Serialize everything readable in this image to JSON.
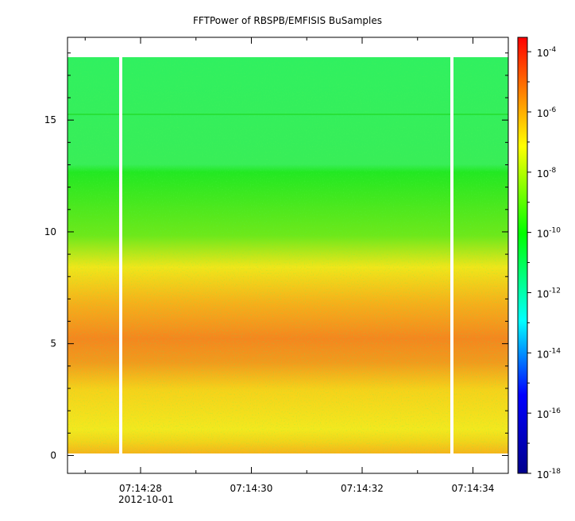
{
  "chart_data": {
    "type": "heatmap",
    "title": "FFTPower of RBSPB/EMFISIS  BuSamples",
    "xlabel": "",
    "ylabel": "",
    "x_date": "2012-10-01",
    "x_ticks": [
      "07:14:28",
      "07:14:30",
      "07:14:32",
      "07:14:34"
    ],
    "y_ticks": [
      "0",
      "5",
      "10",
      "15"
    ],
    "ylim": [
      -0.8,
      18.7
    ],
    "colorbar": {
      "scale": "log",
      "range": [
        1e-18,
        0.0003
      ],
      "tick_mantissa": "10",
      "tick_exponents": [
        "-4",
        "-6",
        "-8",
        "-10",
        "-12",
        "-14",
        "-16",
        "-18"
      ],
      "colors": [
        "#00008b",
        "#0000ff",
        "#00ffff",
        "#00ff00",
        "#ffff00",
        "#ff0000"
      ]
    },
    "data_gaps": [
      "07:14:27.5",
      "07:14:33.6"
    ],
    "bands": [
      {
        "y_range": [
          0,
          0.4
        ],
        "level": "yellow-orange"
      },
      {
        "y_range": [
          0.4,
          3
        ],
        "level": "yellow"
      },
      {
        "y_range": [
          3,
          7
        ],
        "level": "orange (peak near 5)"
      },
      {
        "y_range": [
          7,
          9
        ],
        "level": "yellow"
      },
      {
        "y_range": [
          9,
          12.3
        ],
        "level": "green"
      },
      {
        "y_range": [
          12.3,
          17.5
        ],
        "level": "light green"
      }
    ]
  }
}
